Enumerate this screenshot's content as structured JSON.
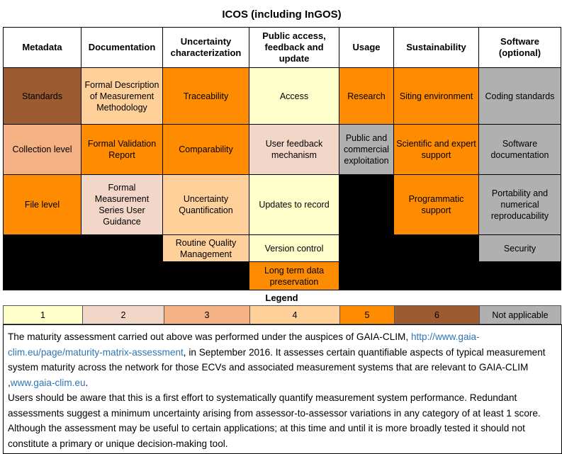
{
  "title": "ICOS (including InGOS)",
  "headers": [
    "Metadata",
    "Documentation",
    "Uncertainty characterization",
    "Public access, feedback and update",
    "Usage",
    "Sustainability",
    "Software (optional)"
  ],
  "rows": [
    [
      "Standards",
      "Formal Description of Measurement Methodology",
      "Traceability",
      "Access",
      "Research",
      "Siting environment",
      "Coding standards"
    ],
    [
      "Collection level",
      "Formal Validation Report",
      "Comparability",
      "User feedback mechanism",
      "Public and commercial exploitation",
      "Scientific and expert support",
      "Software documentation"
    ],
    [
      "File level",
      "Formal Measurement Series User Guidance",
      "Uncertainty Quantification",
      "Updates to record",
      "",
      "Programmatic support",
      "Portability and numerical reproducability"
    ],
    [
      "",
      "",
      "Routine Quality Management",
      "Version control",
      "",
      "",
      "Security"
    ],
    [
      "",
      "",
      "",
      "Long term data preservation",
      "",
      "",
      ""
    ]
  ],
  "cell_colors": {
    "score_1": "#ffffcc",
    "score_2": "#f2d7c8",
    "score_3": "#f4b183",
    "score_4": "#ffd09a",
    "score_5": "#ff8c00",
    "score_6": "#9c5b31",
    "not_applicable": "#b0b0b0",
    "blank": "#000000"
  },
  "legend": {
    "title": "Legend",
    "items": [
      "1",
      "2",
      "3",
      "4",
      "5",
      "6",
      "Not applicable"
    ]
  },
  "note": {
    "p1_before_link": "The  maturity assessment carried out above was performed under the auspices of GAIA-CLIM,  ",
    "link1": "http://www.gaia-clim.eu/page/maturity-matrix-assessment",
    "p1_after_link": ", in September 2016. It assesses certain quantifiable aspects of typical measurement system maturity across the network for those ECVs and associated measurement systems that are relevant to GAIA-CLIM ,",
    "link2": "www.gaia-clim.eu",
    "p1_end": ".",
    "p2": "Users should be aware that this is a first effort to systematically quantify measurement system performance. Redundant assessments suggest a minimum uncertainty arising from assessor-to-assessor variations in any category of at least 1 score. Although the assessment may be useful to certain applications; at this time and until it is more broadly tested it should not constitute a primary or unique decision-making tool."
  }
}
